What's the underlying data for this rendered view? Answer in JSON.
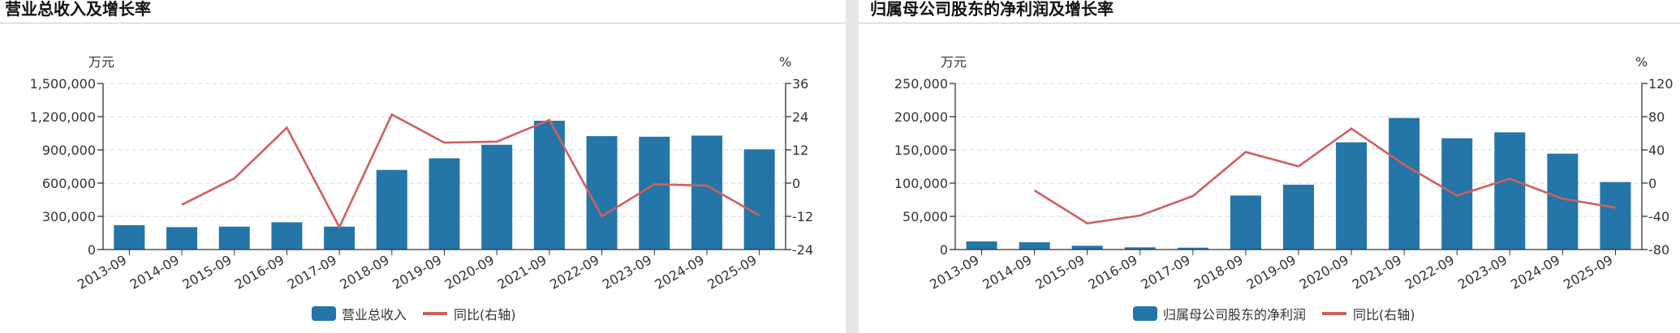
{
  "colors": {
    "bar": "#2475a8",
    "line": "#d0605e",
    "grid": "#d9d9d9",
    "axis": "#333333",
    "gutter": "#e6e6e6"
  },
  "panels": [
    {
      "title": "营业总收入及增长率",
      "left_unit": "万元",
      "right_unit": "%",
      "legend": {
        "bar_label": "营业总收入",
        "line_label": "同比(右轴)"
      }
    },
    {
      "title": "归属母公司股东的净利润及增长率",
      "left_unit": "万元",
      "right_unit": "%",
      "legend": {
        "bar_label": "归属母公司股东的净利润",
        "line_label": "同比(右轴)"
      }
    }
  ],
  "chart_data": [
    {
      "type": "bar+line",
      "title": "营业总收入及增长率",
      "categories": [
        "2013-09",
        "2014-09",
        "2015-09",
        "2016-09",
        "2017-09",
        "2018-09",
        "2019-09",
        "2020-09",
        "2021-09",
        "2022-09",
        "2023-09",
        "2024-09",
        "2025-09"
      ],
      "series": [
        {
          "name": "营业总收入",
          "type": "bar",
          "axis": "left",
          "values": [
            220000,
            202000,
            207000,
            246000,
            207000,
            719000,
            824000,
            946000,
            1163000,
            1024000,
            1019000,
            1029000,
            905000
          ]
        },
        {
          "name": "同比(右轴)",
          "type": "line",
          "axis": "right",
          "values": [
            null,
            -7.8,
            1.7,
            20.0,
            -15.9,
            24.8,
            14.6,
            15.0,
            22.8,
            -12.0,
            -0.4,
            -0.9,
            -11.7
          ]
        }
      ],
      "ylabel": "万元",
      "y2label": "%",
      "ylim": [
        0,
        1500000
      ],
      "y2lim": [
        -24,
        36
      ],
      "yticks": [
        "0",
        "300,000",
        "600,000",
        "900,000",
        "1,200,000",
        "1,500,000"
      ],
      "yticks_values": [
        0,
        300000,
        600000,
        900000,
        1200000,
        1500000
      ],
      "y2ticks": [
        "-24",
        "-12",
        "0",
        "12",
        "24",
        "36"
      ],
      "y2ticks_values": [
        -24,
        -12,
        0,
        12,
        24,
        36
      ],
      "grid": true,
      "legend_position": "bottom"
    },
    {
      "type": "bar+line",
      "title": "归属母公司股东的净利润及增长率",
      "categories": [
        "2013-09",
        "2014-09",
        "2015-09",
        "2016-09",
        "2017-09",
        "2018-09",
        "2019-09",
        "2020-09",
        "2021-09",
        "2022-09",
        "2023-09",
        "2024-09",
        "2025-09"
      ],
      "series": [
        {
          "name": "归属母公司股东的净利润",
          "type": "bar",
          "axis": "left",
          "values": [
            12200,
            11000,
            5700,
            3300,
            2800,
            81300,
            97600,
            161400,
            198000,
            167500,
            176400,
            144300,
            101600
          ]
        },
        {
          "name": "同比(右轴)",
          "type": "line",
          "axis": "right",
          "values": [
            null,
            -8.8,
            -48.4,
            -39.0,
            -15.6,
            37.5,
            20.2,
            65.7,
            22.0,
            -15.0,
            5.3,
            -18.8,
            -29.6
          ]
        }
      ],
      "ylabel": "万元",
      "y2label": "%",
      "ylim": [
        0,
        250000
      ],
      "y2lim": [
        -80,
        120
      ],
      "yticks": [
        "0",
        "50,000",
        "100,000",
        "150,000",
        "200,000",
        "250,000"
      ],
      "yticks_values": [
        0,
        50000,
        100000,
        150000,
        200000,
        250000
      ],
      "y2ticks": [
        "-80",
        "-40",
        "0",
        "40",
        "80",
        "120"
      ],
      "y2ticks_values": [
        -80,
        -40,
        0,
        40,
        80,
        120
      ],
      "grid": true,
      "legend_position": "bottom"
    }
  ]
}
